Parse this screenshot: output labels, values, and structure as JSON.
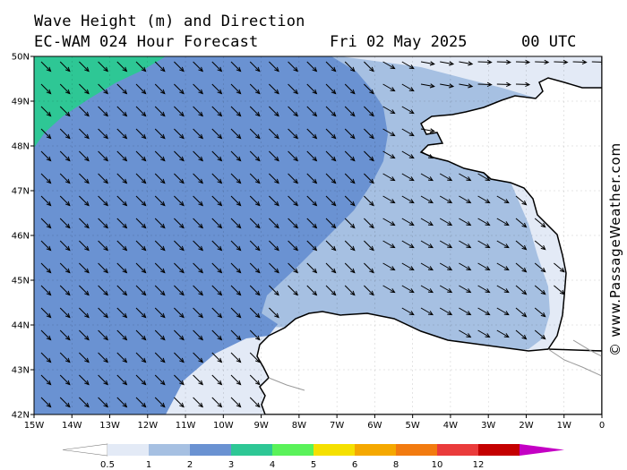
{
  "header": {
    "title": "Wave Height (m) and Direction",
    "model": "EC-WAM 024 Hour Forecast",
    "date": "Fri 02 May 2025",
    "time": "00 UTC"
  },
  "credit": "© www.PassageWeather.com",
  "map": {
    "lon_labels": [
      "15W",
      "14W",
      "13W",
      "12W",
      "11W",
      "10W",
      "9W",
      "8W",
      "7W",
      "6W",
      "5W",
      "4W",
      "3W",
      "2W",
      "1W",
      "0"
    ],
    "lat_labels": [
      "50N",
      "49N",
      "48N",
      "47N",
      "46N",
      "45N",
      "44N",
      "43N",
      "42N"
    ],
    "wave_direction": "from the northwest (arrows pointing southeast)"
  },
  "legend": {
    "bins": [
      {
        "color": "#e3eaf6"
      },
      {
        "color": "#a6c0e2"
      },
      {
        "color": "#6a92d2"
      },
      {
        "color": "#2ec795"
      },
      {
        "color": "#5af25a"
      },
      {
        "color": "#f5e000"
      },
      {
        "color": "#f5a800"
      },
      {
        "color": "#f27b10"
      },
      {
        "color": "#ea3b3b"
      },
      {
        "color": "#c40000"
      },
      {
        "color": "#c400c4"
      }
    ],
    "labels": [
      "0.5",
      "1",
      "2",
      "3",
      "4",
      "5",
      "6",
      "8",
      "10",
      "12"
    ]
  },
  "colors": {
    "band_lt_0_5": "#ffffff",
    "band_0_5_1": "#e3eaf6",
    "band_1_2": "#a6c0e2",
    "band_2_3": "#6a92d2",
    "band_3_4": "#2ec795"
  }
}
